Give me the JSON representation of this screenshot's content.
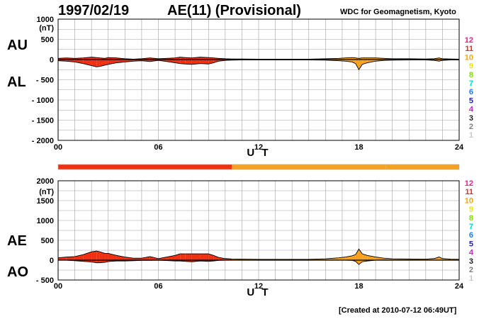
{
  "header": {
    "date": "1997/02/19",
    "title": "AE(11) (Provisional)",
    "source": "WDC for Geomagnetism, Kyoto"
  },
  "footer": {
    "created": "[Created at 2010-07-12 06:49UT]"
  },
  "colors": {
    "grid": "#a0a0a0",
    "fill_red": "#f03010",
    "fill_orange": "#f8a020",
    "line": "#000000"
  },
  "station_legend": [
    {
      "label": "12",
      "color": "#ff1493"
    },
    {
      "label": "11",
      "color": "#ff2020"
    },
    {
      "label": "10",
      "color": "#ffa500"
    },
    {
      "label": "9",
      "color": "#e8e800"
    },
    {
      "label": "8",
      "color": "#7ee000"
    },
    {
      "label": "7",
      "color": "#00d8d8"
    },
    {
      "label": "6",
      "color": "#1e78ff"
    },
    {
      "label": "5",
      "color": "#2020c0"
    },
    {
      "label": "4",
      "color": "#d020d0"
    },
    {
      "label": "3",
      "color": "#202020"
    },
    {
      "label": "2",
      "color": "#808080"
    },
    {
      "label": "1",
      "color": "#c8c8c8"
    }
  ],
  "station_bar": [
    {
      "from": 0,
      "to": 10.4,
      "color": "#f03010"
    },
    {
      "from": 10.4,
      "to": 19.6,
      "color": "#f8a020"
    },
    {
      "from": 19.6,
      "to": 24,
      "color": "#f8a020"
    }
  ],
  "chart_data": [
    {
      "type": "area",
      "panel": "AU/AL",
      "labels": [
        "AU",
        "AL"
      ],
      "ylabel": "(nT)",
      "xlabel": "U T",
      "xlim": [
        0,
        24
      ],
      "ylim": [
        -2000,
        1000
      ],
      "xticks": [
        0,
        6,
        12,
        18,
        24
      ],
      "xtick_labels": [
        "00",
        "06",
        "12",
        "18",
        "24"
      ],
      "yticks": [
        1000,
        500,
        0,
        -500,
        -1000,
        -1500,
        -2000
      ],
      "ytick_labels": [
        "1000",
        "500",
        "0",
        "- 500",
        "- 1000",
        "- 1500",
        "- 2000"
      ],
      "grid": true,
      "x": [
        0,
        0.5,
        1,
        1.5,
        2,
        2.3,
        2.5,
        2.8,
        3,
        3.5,
        4,
        4.5,
        5,
        5.5,
        6,
        6.5,
        7,
        7.3,
        7.6,
        8,
        8.5,
        9,
        9.3,
        9.6,
        10,
        10.4,
        11,
        12,
        13,
        14,
        15,
        16,
        16.8,
        17.2,
        17.6,
        17.8,
        18,
        18.2,
        18.5,
        19,
        19.5,
        20,
        21,
        22,
        22.5,
        22.8,
        23,
        23.5,
        24
      ],
      "series": [
        {
          "name": "AU",
          "values": [
            30,
            40,
            30,
            40,
            60,
            50,
            40,
            30,
            50,
            40,
            20,
            10,
            20,
            40,
            20,
            30,
            40,
            60,
            50,
            40,
            60,
            50,
            40,
            30,
            20,
            15,
            15,
            10,
            10,
            10,
            10,
            20,
            30,
            40,
            50,
            40,
            30,
            40,
            40,
            40,
            30,
            20,
            20,
            15,
            20,
            40,
            20,
            15,
            10
          ]
        },
        {
          "name": "AL",
          "values": [
            -30,
            -40,
            -60,
            -100,
            -150,
            -180,
            -170,
            -140,
            -120,
            -80,
            -60,
            -40,
            -30,
            -50,
            -20,
            -50,
            -80,
            -100,
            -110,
            -120,
            -100,
            -110,
            -80,
            -40,
            -20,
            -15,
            -10,
            -10,
            -10,
            -10,
            -10,
            -15,
            -30,
            -40,
            -60,
            -100,
            -250,
            -120,
            -80,
            -40,
            -20,
            -15,
            -10,
            -10,
            -20,
            -40,
            -20,
            -10,
            -10
          ]
        }
      ]
    },
    {
      "type": "area",
      "panel": "AE/AO",
      "labels": [
        "AE",
        "AO"
      ],
      "ylabel": "(nT)",
      "xlabel": "U T",
      "xlim": [
        0,
        24
      ],
      "ylim": [
        -500,
        2000
      ],
      "xticks": [
        0,
        6,
        12,
        18,
        24
      ],
      "xtick_labels": [
        "00",
        "06",
        "12",
        "18",
        "24"
      ],
      "yticks": [
        2000,
        1500,
        1000,
        500,
        0,
        -500
      ],
      "ytick_labels": [
        "2000",
        "1500",
        "1000",
        "500",
        "0",
        "- 500"
      ],
      "grid": true,
      "x": [
        0,
        0.5,
        1,
        1.5,
        2,
        2.3,
        2.5,
        2.8,
        3,
        3.5,
        4,
        4.5,
        5,
        5.5,
        6,
        6.5,
        7,
        7.3,
        7.6,
        8,
        8.5,
        9,
        9.3,
        9.6,
        10,
        10.4,
        11,
        12,
        13,
        14,
        15,
        16,
        16.8,
        17.2,
        17.6,
        17.8,
        18,
        18.2,
        18.5,
        19,
        19.5,
        20,
        21,
        22,
        22.5,
        22.8,
        23,
        23.5,
        24
      ],
      "series": [
        {
          "name": "AE",
          "values": [
            60,
            80,
            90,
            140,
            210,
            230,
            210,
            170,
            170,
            120,
            80,
            50,
            50,
            90,
            40,
            80,
            120,
            160,
            160,
            160,
            160,
            160,
            120,
            70,
            40,
            30,
            25,
            20,
            20,
            20,
            20,
            35,
            60,
            80,
            110,
            140,
            280,
            160,
            120,
            80,
            50,
            35,
            30,
            25,
            40,
            80,
            40,
            25,
            20
          ]
        },
        {
          "name": "AO",
          "values": [
            0,
            0,
            -15,
            -30,
            -45,
            -65,
            -65,
            -55,
            -35,
            -20,
            -20,
            -15,
            -5,
            -5,
            0,
            -10,
            -20,
            -20,
            -30,
            -40,
            -20,
            -30,
            -20,
            -5,
            0,
            0,
            3,
            0,
            0,
            0,
            0,
            3,
            0,
            0,
            -5,
            -30,
            -110,
            -40,
            -20,
            0,
            5,
            3,
            5,
            3,
            0,
            0,
            0,
            3,
            0
          ]
        }
      ]
    }
  ]
}
